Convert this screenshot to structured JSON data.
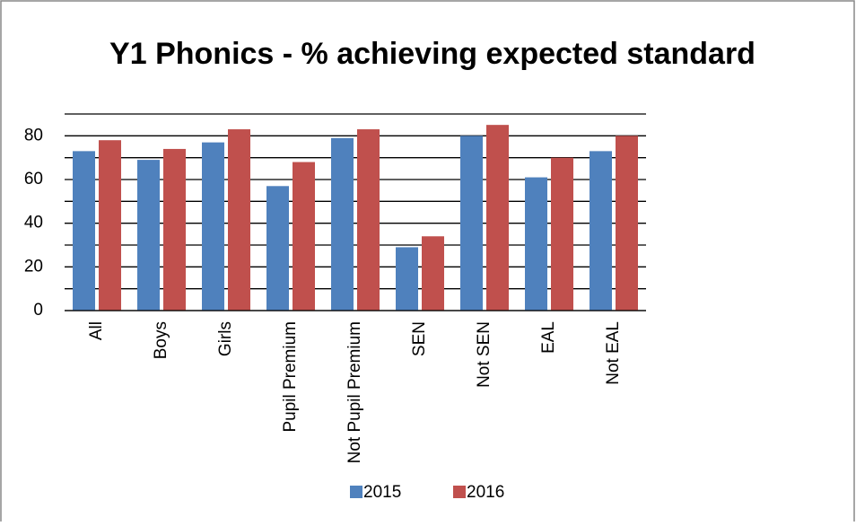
{
  "chart_data": {
    "type": "bar",
    "title": "Y1 Phonics - % achieving expected standard",
    "categories": [
      "All",
      "Boys",
      "Girls",
      "Pupil Premium",
      "Not Pupil Premium",
      "SEN",
      "Not SEN",
      "EAL",
      "Not EAL"
    ],
    "series": [
      {
        "name": "2015",
        "color": "#4f81bd",
        "values": [
          73,
          69,
          77,
          57,
          79,
          29,
          80,
          61,
          73
        ]
      },
      {
        "name": "2016",
        "color": "#c0504d",
        "values": [
          78,
          74,
          83,
          68,
          83,
          34,
          85,
          70,
          80
        ]
      }
    ],
    "ylim": [
      0,
      90
    ],
    "yticks": [
      0,
      20,
      40,
      60,
      80
    ],
    "yticks_minor": [
      10,
      30,
      50,
      70,
      90
    ],
    "grid": true,
    "legend": "bottom"
  }
}
